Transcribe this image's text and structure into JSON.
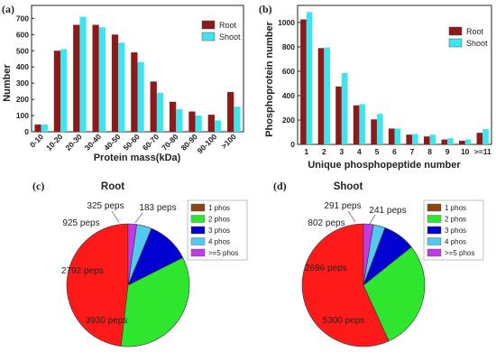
{
  "colors": {
    "root": "#8B1A1A",
    "shoot": "#3FE4EE",
    "phos1": "#8B4513",
    "phos2": "#2EE62E",
    "phos3": "#0000D0",
    "phos4": "#55C8F0",
    "phos5": "#C03AE6",
    "big_slice": "#FF1A1A"
  },
  "chart_data": [
    {
      "panel": "(a)",
      "type": "bar",
      "xlabel": "Protein mass(kDa)",
      "ylabel": "Number",
      "ylim": [
        0,
        780
      ],
      "yticks": [
        0,
        100,
        200,
        300,
        400,
        500,
        600,
        700
      ],
      "legend_position": "top-right",
      "categories": [
        "0-10",
        "10-20",
        "20-30",
        "30-40",
        "40-50",
        "50-60",
        "60-70",
        "70-80",
        "80-90",
        "90-100",
        ">100"
      ],
      "series": [
        {
          "name": "Root",
          "values": [
            45,
            500,
            660,
            660,
            600,
            490,
            310,
            185,
            125,
            105,
            245
          ]
        },
        {
          "name": "Shoot",
          "values": [
            45,
            510,
            710,
            645,
            550,
            430,
            240,
            140,
            100,
            70,
            155
          ]
        }
      ]
    },
    {
      "panel": "(b)",
      "type": "bar",
      "xlabel": "Unique phosphopeptide number",
      "ylabel": "Phosphoprotein number",
      "ylim": [
        0,
        1140
      ],
      "yticks": [
        0,
        200,
        400,
        600,
        800,
        1000
      ],
      "legend_position": "top-right",
      "categories": [
        "1",
        "2",
        "3",
        "4",
        "5",
        "6",
        "7",
        "8",
        "9",
        "10",
        ">=11"
      ],
      "series": [
        {
          "name": "Root",
          "values": [
            1025,
            790,
            475,
            320,
            205,
            130,
            80,
            65,
            40,
            30,
            95
          ]
        },
        {
          "name": "Shoot",
          "values": [
            1085,
            795,
            585,
            330,
            250,
            130,
            85,
            80,
            50,
            40,
            125
          ]
        }
      ]
    },
    {
      "panel": "(c)",
      "type": "pie",
      "title": "Root",
      "legend_position": "right",
      "slices": [
        {
          "name": "1 phos",
          "value": 3930,
          "label": "3930 peps"
        },
        {
          "name": "2 phos",
          "value": 2792,
          "label": "2792 peps"
        },
        {
          "name": "3 phos",
          "value": 925,
          "label": "925 peps"
        },
        {
          "name": "4 phos",
          "value": 325,
          "label": "325 peps"
        },
        {
          "name": ">=5 phos",
          "value": 183,
          "label": "183 peps"
        }
      ]
    },
    {
      "panel": "(d)",
      "type": "pie",
      "title": "Shoot",
      "legend_position": "right",
      "slices": [
        {
          "name": "1 phos",
          "value": 5300,
          "label": "5300 peps"
        },
        {
          "name": "2 phos",
          "value": 2696,
          "label": "2696 peps"
        },
        {
          "name": "3 phos",
          "value": 802,
          "label": "802 peps"
        },
        {
          "name": "4 phos",
          "value": 291,
          "label": "291 peps"
        },
        {
          "name": ">=5 phos",
          "value": 241,
          "label": "241 peps"
        }
      ]
    }
  ]
}
